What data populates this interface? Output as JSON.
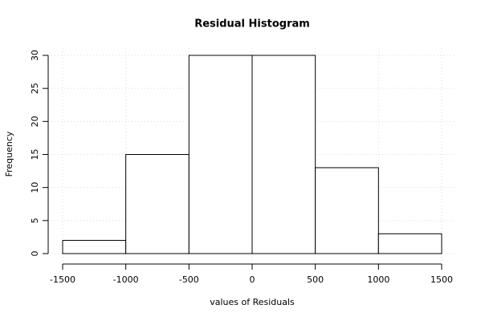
{
  "chart_data": {
    "type": "histogram",
    "title": "Residual Histogram",
    "x_label": "values of Residuals",
    "y_label": "Frequency",
    "bins": [
      -1500,
      -1000,
      -500,
      0,
      500,
      1000,
      1500
    ],
    "values": [
      2,
      15,
      30,
      30,
      13,
      3
    ],
    "color": "#ffffff",
    "xlim": [
      -1500,
      1500
    ],
    "xticks": [
      -1500,
      -1000,
      -500,
      0,
      500,
      1000,
      1500
    ],
    "ylim": [
      0,
      30
    ],
    "yticks": [
      0,
      5,
      10,
      15,
      20,
      25,
      30
    ],
    "grid": true
  }
}
